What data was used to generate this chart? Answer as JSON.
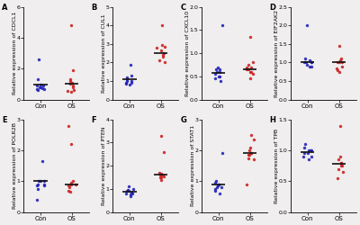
{
  "panels": [
    {
      "label": "A",
      "gene": "CDCL1",
      "ylabel": "Relative expression of CDCL1",
      "ylim": [
        0,
        6
      ],
      "yticks": [
        0,
        2,
        4,
        6
      ],
      "con_data": [
        1.0,
        0.75,
        2.6,
        0.8,
        0.9,
        0.7,
        1.3,
        0.65,
        0.7,
        0.8,
        0.9
      ],
      "os_data": [
        4.8,
        1.9,
        1.3,
        0.9,
        0.8,
        0.55,
        1.1,
        1.05,
        0.5,
        1.2,
        0.65
      ],
      "con_mean": 0.95,
      "os_mean": 1.05
    },
    {
      "label": "B",
      "gene": "CUL1",
      "ylabel": "Relative expression of CUL1",
      "ylim": [
        0,
        5
      ],
      "yticks": [
        0,
        1,
        2,
        3,
        4,
        5
      ],
      "con_data": [
        1.0,
        0.9,
        1.9,
        1.3,
        0.8,
        1.0,
        1.1,
        0.9,
        1.2,
        0.85
      ],
      "os_data": [
        2.95,
        2.85,
        2.8,
        2.65,
        2.5,
        4.0,
        2.3,
        2.1,
        2.0,
        2.4
      ],
      "con_mean": 1.1,
      "os_mean": 2.5
    },
    {
      "label": "C",
      "gene": "CXCL10",
      "ylabel": "Relative expression of CXCL10",
      "ylim": [
        0,
        2.0
      ],
      "yticks": [
        0.0,
        0.5,
        1.0,
        1.5,
        2.0
      ],
      "con_data": [
        0.6,
        0.5,
        0.65,
        0.55,
        0.4,
        0.65,
        0.5,
        0.6,
        0.45,
        0.7,
        1.6
      ],
      "os_data": [
        0.65,
        0.55,
        0.8,
        0.7,
        0.6,
        0.45,
        0.7,
        0.6,
        0.65,
        0.75,
        1.35
      ],
      "con_mean": 0.58,
      "os_mean": 0.65
    },
    {
      "label": "D",
      "gene": "EIF2AK2",
      "ylabel": "Relative expression of EIF2AK2",
      "ylim": [
        0,
        2.5
      ],
      "yticks": [
        0.0,
        0.5,
        1.0,
        1.5,
        2.0,
        2.5
      ],
      "con_data": [
        1.0,
        0.9,
        1.0,
        1.1,
        0.95,
        1.05,
        0.9,
        1.0,
        1.0,
        2.0
      ],
      "os_data": [
        1.0,
        0.8,
        1.1,
        0.9,
        1.0,
        0.85,
        1.05,
        1.45,
        0.75,
        1.0
      ],
      "con_mean": 1.0,
      "os_mean": 1.0
    },
    {
      "label": "E",
      "gene": "POLR2B",
      "ylabel": "Relative expression of POLR2B",
      "ylim": [
        0,
        3
      ],
      "yticks": [
        0,
        1,
        2,
        3
      ],
      "con_data": [
        1.0,
        0.85,
        1.65,
        0.9,
        0.75,
        0.9,
        1.0,
        0.85,
        0.4,
        1.0
      ],
      "os_data": [
        2.8,
        2.2,
        1.0,
        0.9,
        0.7,
        0.8,
        0.95,
        0.85,
        0.65,
        0.9
      ],
      "con_mean": 1.0,
      "os_mean": 0.9
    },
    {
      "label": "F",
      "gene": "PTEN",
      "ylabel": "Relative expression of PTEN",
      "ylim": [
        0,
        4
      ],
      "yticks": [
        0,
        1,
        2,
        3,
        4
      ],
      "con_data": [
        0.9,
        0.8,
        1.0,
        0.85,
        0.7,
        0.75,
        0.9,
        1.1,
        0.95,
        0.8
      ],
      "os_data": [
        1.7,
        1.6,
        3.3,
        2.6,
        1.5,
        1.4,
        1.5,
        1.6,
        1.65,
        1.55
      ],
      "con_mean": 0.88,
      "os_mean": 1.6
    },
    {
      "label": "G",
      "gene": "STAT1",
      "ylabel": "Relative expression of STAT1",
      "ylim": [
        0,
        3
      ],
      "yticks": [
        0,
        1,
        2,
        3
      ],
      "con_data": [
        1.9,
        0.9,
        0.8,
        0.95,
        0.85,
        0.9,
        0.7,
        1.0,
        0.75,
        0.6,
        0.8
      ],
      "os_data": [
        2.5,
        2.35,
        2.0,
        1.9,
        1.85,
        1.7,
        1.9,
        1.85,
        1.75,
        2.1,
        0.9
      ],
      "con_mean": 0.88,
      "os_mean": 1.9
    },
    {
      "label": "H",
      "gene": "TPB",
      "ylabel": "Relative expression of TPB",
      "ylim": [
        0,
        1.5
      ],
      "yticks": [
        0.0,
        0.5,
        1.0,
        1.5
      ],
      "con_data": [
        1.0,
        0.9,
        1.1,
        0.85,
        0.95,
        1.0,
        1.05,
        0.9,
        1.0,
        0.95
      ],
      "os_data": [
        1.4,
        0.8,
        0.75,
        0.7,
        0.8,
        0.85,
        0.65,
        0.9,
        0.55,
        0.75
      ],
      "con_mean": 0.97,
      "os_mean": 0.78
    }
  ],
  "con_color": "#2222bb",
  "os_color": "#cc2222",
  "mean_color": "#111111",
  "dot_size": 6,
  "mean_linewidth": 1.2,
  "mean_span": 0.22,
  "xlabel_con": "Con",
  "xlabel_os": "OS",
  "background_color": "#f0eeee",
  "panel_label_fontsize": 6,
  "ylabel_fontsize": 4.5,
  "tick_fontsize": 4.5,
  "xlabel_fontsize": 5.0
}
